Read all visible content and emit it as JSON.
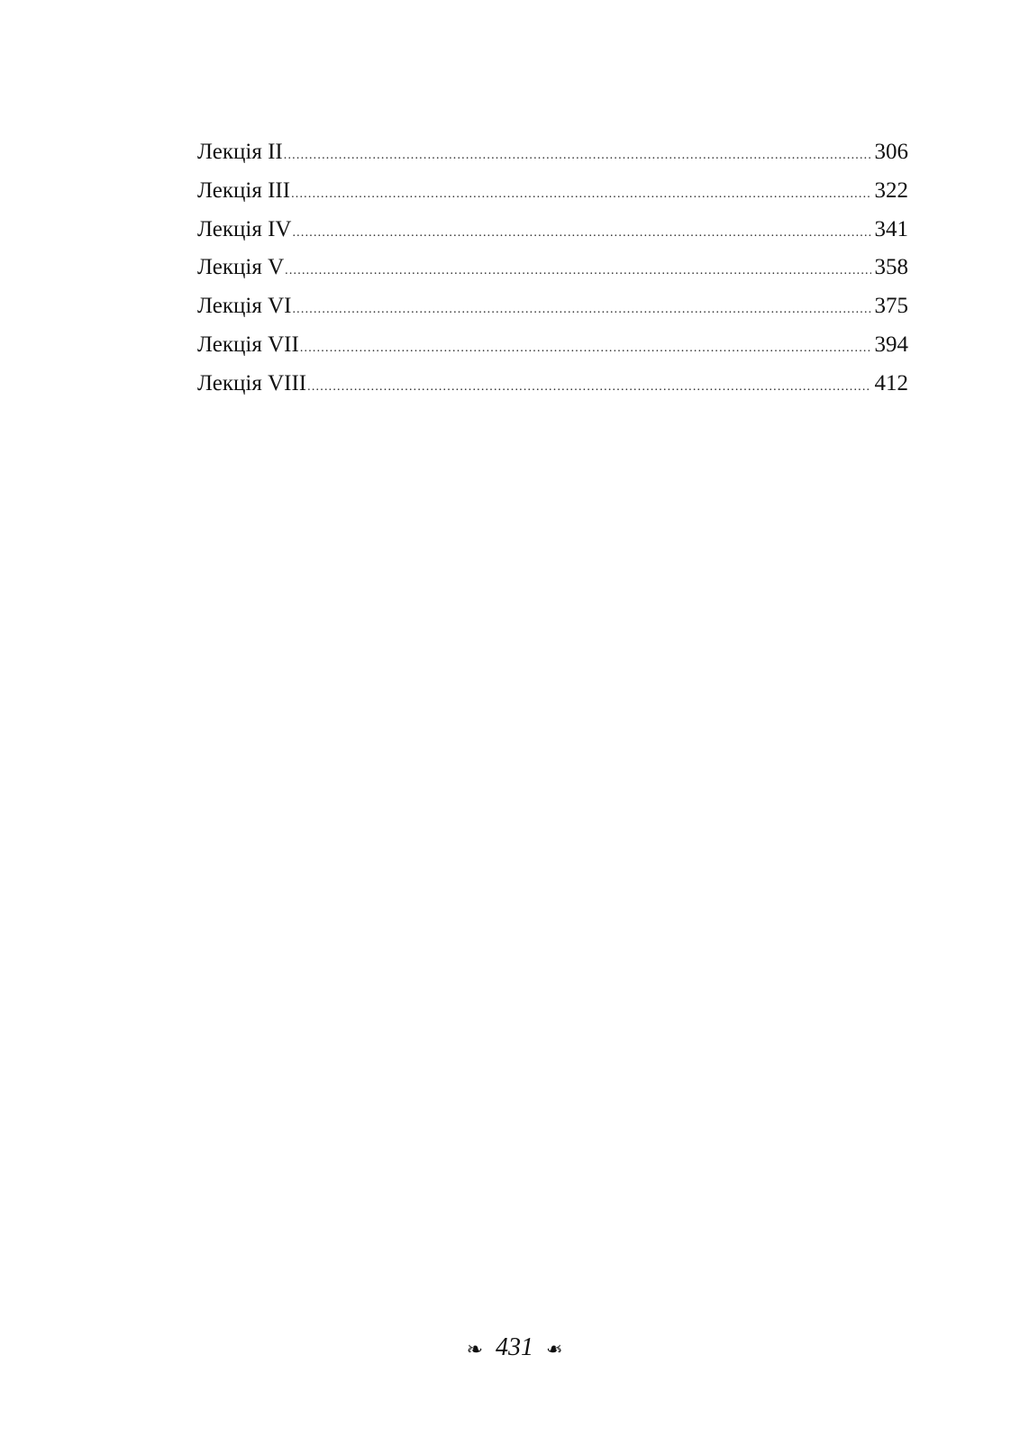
{
  "toc": [
    {
      "label": "Лекція II",
      "page": "306"
    },
    {
      "label": "Лекція III",
      "page": "322"
    },
    {
      "label": "Лекція IV",
      "page": "341"
    },
    {
      "label": "Лекція V",
      "page": "358"
    },
    {
      "label": "Лекція VI",
      "page": "375"
    },
    {
      "label": "Лекція VII",
      "page": "394"
    },
    {
      "label": "Лекція VIII",
      "page": "412"
    }
  ],
  "footer": {
    "page_number": "431",
    "ornament_left": "fleuron-left-icon",
    "ornament_right": "fleuron-right-icon"
  }
}
